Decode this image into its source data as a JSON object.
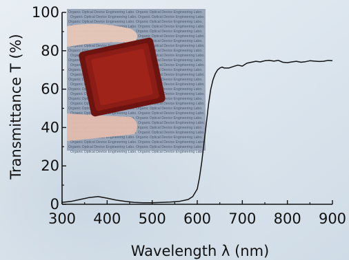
{
  "chart_data": {
    "type": "line",
    "xlabel": "Wavelength λ (nm)",
    "ylabel": "Transmittance T (%)",
    "xlim": [
      300,
      900
    ],
    "ylim": [
      0,
      100
    ],
    "x_ticks": [
      300,
      400,
      500,
      600,
      700,
      800,
      900
    ],
    "y_ticks": [
      0,
      20,
      40,
      60,
      80,
      100
    ],
    "grid": false,
    "series": [
      {
        "color": "#111111",
        "x": [
          300,
          320,
          340,
          360,
          380,
          400,
          420,
          440,
          460,
          480,
          500,
          520,
          540,
          560,
          580,
          590,
          600,
          605,
          610,
          615,
          620,
          625,
          630,
          635,
          640,
          645,
          650,
          655,
          660,
          670,
          680,
          690,
          700,
          710,
          720,
          730,
          740,
          750,
          760,
          770,
          780,
          790,
          800,
          810,
          820,
          830,
          840,
          850,
          860,
          870,
          880,
          890,
          900
        ],
        "y": [
          1,
          1.5,
          2.5,
          3.5,
          4,
          3.2,
          2.2,
          1.5,
          1,
          0.8,
          0.8,
          1,
          1.2,
          1.5,
          2.5,
          4,
          8,
          14,
          22,
          32,
          42,
          52,
          60,
          65,
          68,
          70,
          71,
          71.5,
          71,
          71,
          71.8,
          72.5,
          72,
          73.5,
          74,
          74.5,
          74.2,
          74.8,
          75,
          74.6,
          75,
          74,
          73.8,
          74.2,
          74.5,
          74,
          74.3,
          74.8,
          74.6,
          74.4,
          74.5,
          75,
          74.8
        ]
      }
    ]
  },
  "photo": {
    "watermark_line": "Organic Optical Device Engineering Labo."
  }
}
